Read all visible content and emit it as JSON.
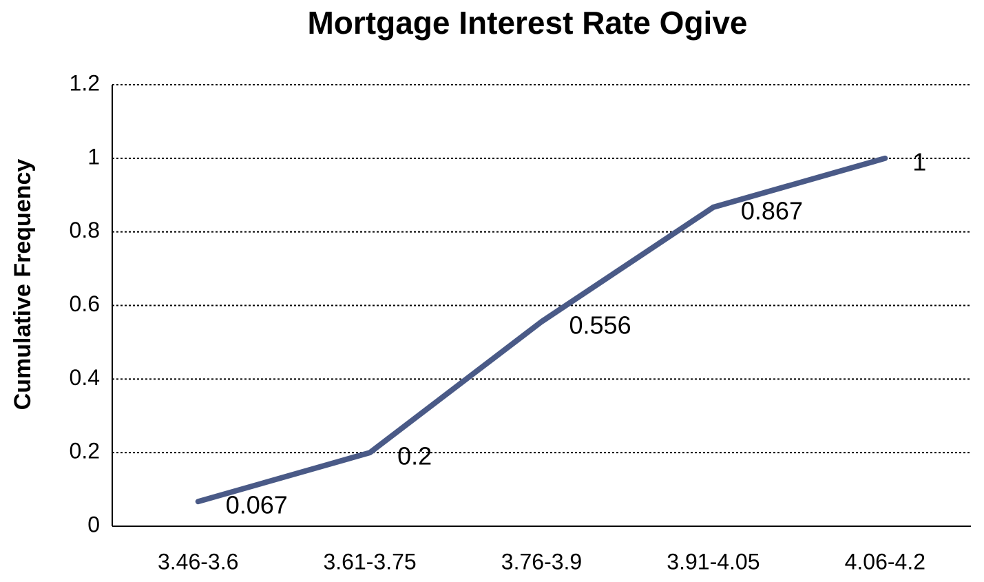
{
  "chart_data": {
    "type": "line",
    "title": "Mortgage Interest Rate Ogive",
    "y_label": "Cumulative Frequency",
    "categories": [
      "3.46-3.6",
      "3.61-3.75",
      "3.76-3.9",
      "3.91-4.05",
      "4.06-4.2"
    ],
    "values": [
      0.067,
      0.2,
      0.556,
      0.867,
      1
    ],
    "color": "#4a5a87",
    "ylim": [
      0,
      1.2
    ],
    "yticks": [
      0,
      0.2,
      0.4,
      0.6,
      0.8,
      1,
      1.2
    ],
    "grid": true
  }
}
